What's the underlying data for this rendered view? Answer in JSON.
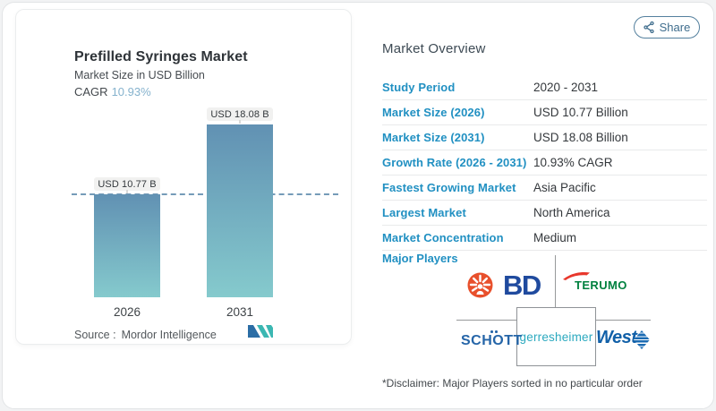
{
  "header": {
    "share_label": "Share"
  },
  "chart_card": {
    "title": "Prefilled Syringes Market",
    "subtitle": "Market Size in USD Billion",
    "cagr_label": "CAGR",
    "cagr_value": "10.93%",
    "source_label": "Source :",
    "source_name": "Mordor Intelligence"
  },
  "chart_data": {
    "type": "bar",
    "title": "Prefilled Syringes Market",
    "ylabel": "Market Size in USD Billion",
    "categories": [
      "2026",
      "2031"
    ],
    "values": [
      10.77,
      18.08
    ],
    "bar_labels": [
      "USD 10.77 B",
      "USD 18.08 B"
    ],
    "cagr": "10.93%",
    "reference_line": 10.77,
    "ylim": [
      0,
      18.08
    ],
    "grid": false,
    "legend": false,
    "bar_gradient": [
      "#6191b3",
      "#85cacd"
    ],
    "reference_line_color": "#5d8aac"
  },
  "overview": {
    "heading": "Market Overview",
    "rows": [
      {
        "label": "Study Period",
        "value": "2020 - 2031"
      },
      {
        "label": "Market Size (2026)",
        "value": "USD 10.77 Billion"
      },
      {
        "label": "Market Size (2031)",
        "value": "USD 18.08 Billion"
      },
      {
        "label": "Growth Rate (2026 - 2031)",
        "value": "10.93% CAGR"
      },
      {
        "label": "Fastest Growing Market",
        "value": "Asia Pacific"
      },
      {
        "label": "Largest Market",
        "value": "North America"
      },
      {
        "label": "Market Concentration",
        "value": "Medium"
      }
    ],
    "major_players_label": "Major Players",
    "players": [
      "BD",
      "TERUMO",
      "SCHOTT",
      "gerresheimer",
      "West"
    ],
    "disclaimer": "*Disclaimer: Major Players sorted in no particular order"
  },
  "colors": {
    "accent_blue": "#2190c2",
    "cagr_value_blue": "#85b2cd",
    "bd_orange": "#e8502c",
    "bd_blue": "#1f4a9e",
    "terumo_green": "#00813f",
    "terumo_red": "#e8372c",
    "schott_blue": "#2565a8",
    "gerresheimer_teal": "#2ba9bf",
    "west_blue": "#1160a8"
  }
}
